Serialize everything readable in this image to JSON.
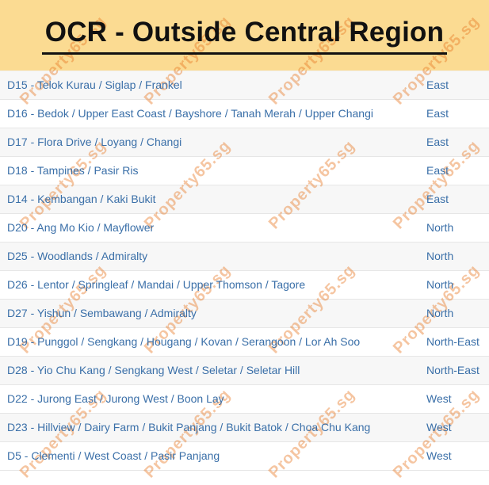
{
  "header": {
    "title": "OCR - Outside Central Region"
  },
  "watermark": {
    "text": "Property65.sg",
    "color": "#e87722"
  },
  "colors": {
    "banner_bg": "#fbdb92",
    "link_blue": "#3a6fa8",
    "stripe_gray": "#f7f7f7",
    "separator": "#e6e6e6"
  },
  "table": {
    "rows": [
      {
        "district": "D15 - Telok Kurau / Siglap / Frankel",
        "region": "East"
      },
      {
        "district": "D16 - Bedok / Upper East Coast / Bayshore / Tanah Merah / Upper Changi",
        "region": "East"
      },
      {
        "district": "D17 - Flora Drive / Loyang / Changi",
        "region": "East"
      },
      {
        "district": "D18 - Tampines / Pasir Ris",
        "region": "East"
      },
      {
        "district": "D14 - Kembangan / Kaki Bukit",
        "region": "East"
      },
      {
        "district": "D20 - Ang Mo Kio / Mayflower",
        "region": "North"
      },
      {
        "district": "D25 - Woodlands / Admiralty",
        "region": "North"
      },
      {
        "district": "D26 - Lentor / Springleaf / Mandai / Upper Thomson / Tagore",
        "region": "North"
      },
      {
        "district": "D27 - Yishun / Sembawang / Admiralty",
        "region": "North"
      },
      {
        "district": "D19 - Punggol / Sengkang / Hougang / Kovan / Serangoon / Lor Ah Soo",
        "region": "North-East"
      },
      {
        "district": "D28 - Yio Chu Kang / Sengkang West / Seletar / Seletar Hill",
        "region": "North-East"
      },
      {
        "district": "D22 - Jurong East / Jurong West / Boon Lay",
        "region": "West"
      },
      {
        "district": "D23 - Hillview / Dairy Farm / Bukit Panjang / Bukit Batok / Choa Chu Kang",
        "region": "West"
      },
      {
        "district": "D5 - Clementi / West Coast / Pasir Panjang",
        "region": "West"
      }
    ]
  }
}
